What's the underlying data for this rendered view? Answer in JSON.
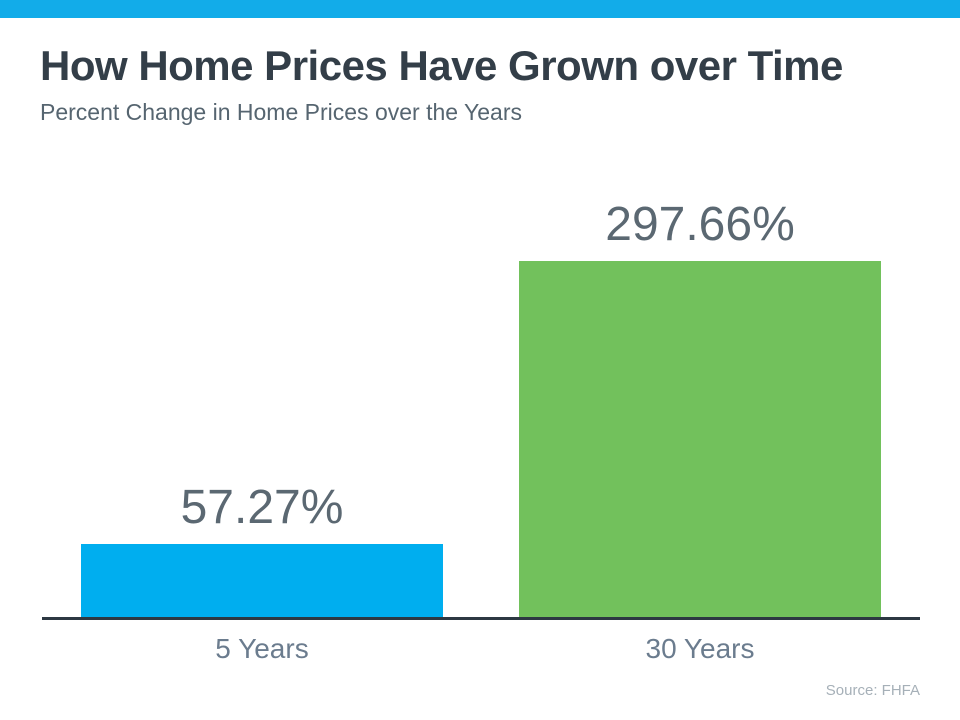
{
  "page": {
    "title": "How Home Prices Have Grown over Time",
    "subtitle": "Percent Change in Home Prices over the Years",
    "source": "Source: FHFA"
  },
  "colors": {
    "top_accent": "#12ACE9",
    "axis": "#2D3842",
    "title_text": "#333E48",
    "subtitle_text": "#566570",
    "value_label_text": "#5B6872",
    "category_label_text": "#6B7C8E",
    "source_text": "#A6B0B8",
    "bar_blue": "#00AEEF",
    "bar_green": "#72C15C"
  },
  "chart_data": {
    "type": "bar",
    "title": "How Home Prices Have Grown over Time",
    "subtitle": "Percent Change in Home Prices over the Years",
    "categories": [
      "5 Years",
      "30 Years"
    ],
    "values": [
      57.27,
      297.66
    ],
    "value_labels": [
      "57.27%",
      "297.66%"
    ],
    "bar_colors": [
      "#00AEEF",
      "#72C15C"
    ],
    "xlabel": "",
    "ylabel": "",
    "ylim": [
      0,
      300
    ],
    "grid": false,
    "legend": false,
    "source": "Source: FHFA"
  }
}
